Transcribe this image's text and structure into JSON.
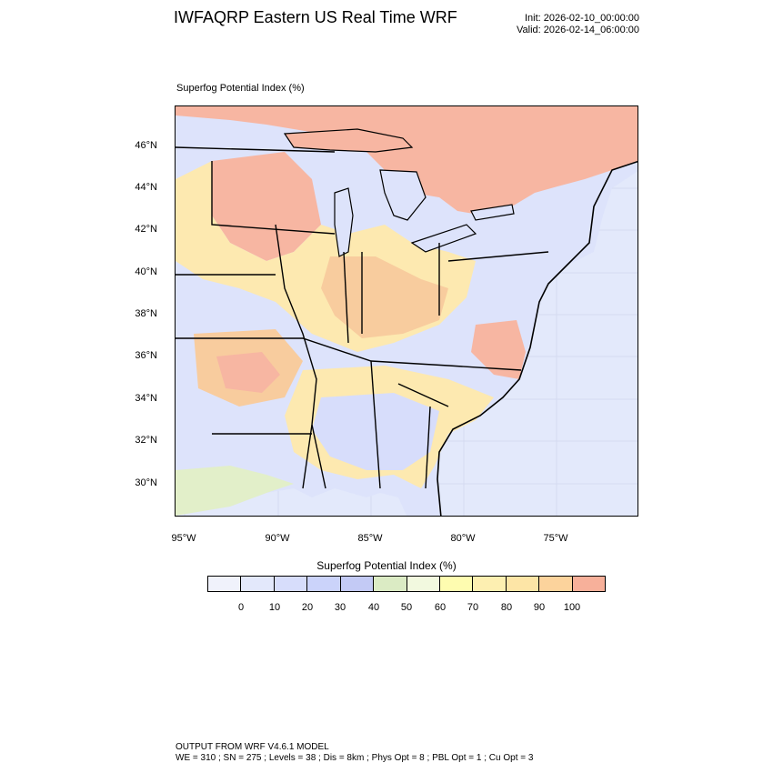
{
  "header": {
    "title": "IWFAQRP Eastern US Real Time WRF",
    "init": "Init: 2026-02-10_00:00:00",
    "valid": "Valid: 2026-02-14_06:00:00"
  },
  "map": {
    "field_label": "Superfog Potential Index   (%)",
    "lat_labels": [
      "46°N",
      "44°N",
      "42°N",
      "40°N",
      "38°N",
      "36°N",
      "34°N",
      "32°N",
      "30°N"
    ],
    "lon_labels": [
      "95°W",
      "90°W",
      "85°W",
      "80°W",
      "75°W"
    ],
    "colors": {
      "background_ocean": "#e3e9fb",
      "high": "#f7b6a2",
      "orange": "#f8cc9e",
      "yellow": "#fde9b0",
      "light_blue": "#dde3fb",
      "green": "#e2efc9",
      "boundary": "#000000"
    }
  },
  "colorbar": {
    "title": "Superfog Potential Index  (%)",
    "colors": [
      "#f0f2fb",
      "#e3e8fb",
      "#d7ddfb",
      "#cbd3fa",
      "#c3caf5",
      "#dbebc4",
      "#f2f9df",
      "#fefcb0",
      "#fdefb1",
      "#fde5a6",
      "#fcd39c",
      "#f7b09a"
    ],
    "ticks": [
      "0",
      "10",
      "20",
      "30",
      "40",
      "50",
      "60",
      "70",
      "80",
      "90",
      "100"
    ]
  },
  "footer": {
    "model": "OUTPUT FROM WRF V4.6.1 MODEL",
    "config": "WE = 310 ; SN = 275 ; Levels = 38 ; Dis = 8km ; Phys Opt = 8 ; PBL Opt = 1 ; Cu Opt = 3"
  }
}
